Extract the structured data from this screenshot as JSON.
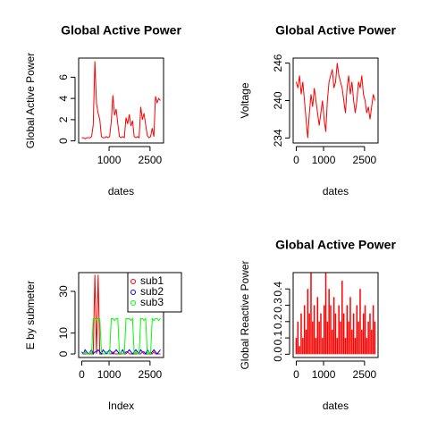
{
  "chart_data": [
    {
      "type": "line",
      "title": "Global Active Power",
      "ylabel": "Global Active Power",
      "xlabel": "dates",
      "color": "#ff0000",
      "x": [
        0,
        60,
        120,
        180,
        240,
        300,
        360,
        420,
        480,
        540,
        600,
        660,
        720,
        780,
        840,
        900,
        960,
        1020,
        1080,
        1140,
        1200,
        1260,
        1320,
        1380,
        1440,
        1500,
        1560,
        1620,
        1680,
        1740,
        1800,
        1860,
        1920,
        1980,
        2040,
        2100,
        2160,
        2220,
        2280,
        2340,
        2400,
        2460,
        2520,
        2580,
        2640,
        2700,
        2760,
        2820,
        2880
      ],
      "values": [
        0.3,
        0.3,
        0.2,
        0.3,
        0.3,
        0.3,
        0.4,
        1.5,
        7.5,
        3.5,
        2.6,
        2.0,
        0.4,
        0.3,
        0.3,
        0.4,
        0.3,
        0.4,
        1.8,
        4.3,
        2.4,
        3.0,
        1.6,
        0.4,
        0.3,
        0.4,
        0.3,
        2.2,
        1.6,
        2.5,
        1.4,
        1.9,
        0.4,
        0.3,
        0.4,
        0.3,
        3.2,
        2.0,
        2.6,
        1.5,
        0.5,
        0.3,
        0.4,
        1.2,
        0.4,
        4.2,
        3.6,
        4.0,
        3.8
      ],
      "xlim": [
        -114,
        2995
      ],
      "xticks": [
        1000,
        2500
      ],
      "ylim": [
        -0.2,
        7.8
      ],
      "yticks": [
        0,
        2,
        4,
        6
      ]
    },
    {
      "type": "line",
      "title": "Global Active Power",
      "ylabel": "Voltage",
      "xlabel": "dates",
      "color": "#ff0000",
      "x": [
        0,
        60,
        120,
        180,
        240,
        300,
        360,
        420,
        480,
        540,
        600,
        660,
        720,
        780,
        840,
        900,
        960,
        1020,
        1080,
        1140,
        1200,
        1260,
        1320,
        1380,
        1440,
        1500,
        1560,
        1620,
        1680,
        1740,
        1800,
        1860,
        1920,
        1980,
        2040,
        2100,
        2160,
        2220,
        2280,
        2340,
        2400,
        2460,
        2520,
        2580,
        2640,
        2700,
        2760,
        2820,
        2880
      ],
      "values": [
        243,
        242,
        244,
        241,
        243,
        240,
        237,
        234,
        238,
        241,
        239,
        242,
        240,
        238,
        236,
        238,
        240,
        237,
        235,
        240,
        243,
        244,
        245,
        242,
        243,
        246,
        244,
        243,
        242,
        240,
        238,
        242,
        244,
        241,
        243,
        240,
        238,
        240,
        243,
        242,
        244,
        241,
        240,
        238,
        239,
        237,
        239,
        241,
        240
      ],
      "xlim": [
        -114,
        2995
      ],
      "xticks": [
        0,
        1000,
        2500
      ],
      "ylim": [
        233.2,
        246.8
      ],
      "yticks": [
        234,
        240,
        246
      ]
    },
    {
      "type": "line",
      "ylabel": "E by submeter",
      "xlabel": "Index",
      "legend": "topright",
      "x": [
        0,
        60,
        120,
        180,
        240,
        300,
        360,
        420,
        480,
        540,
        600,
        660,
        720,
        780,
        840,
        900,
        960,
        1020,
        1080,
        1140,
        1200,
        1260,
        1320,
        1380,
        1440,
        1500,
        1560,
        1620,
        1680,
        1740,
        1800,
        1860,
        1920,
        1980,
        2040,
        2100,
        2160,
        2220,
        2280,
        2340,
        2400,
        2460,
        2520,
        2580,
        2640,
        2700,
        2760,
        2820,
        2880
      ],
      "series": [
        {
          "name": "sub1",
          "color": "#ff0000",
          "values": [
            0,
            0,
            0,
            0,
            0,
            0,
            0,
            0,
            38,
            0,
            38,
            0,
            0,
            0,
            0,
            1,
            0,
            0,
            0,
            1,
            0,
            0,
            0,
            0,
            0,
            0,
            0,
            0,
            1,
            0,
            0,
            0,
            0,
            0,
            0,
            0,
            0,
            1,
            0,
            0,
            0,
            0,
            0,
            0,
            1,
            0,
            0,
            0,
            0
          ]
        },
        {
          "name": "sub2",
          "color": "#0000ff",
          "values": [
            1,
            0,
            2,
            1,
            0,
            1,
            2,
            0,
            1,
            1,
            2,
            1,
            0,
            2,
            1,
            0,
            1,
            2,
            1,
            0,
            1,
            2,
            1,
            0,
            1,
            2,
            0,
            1,
            1,
            2,
            1,
            0,
            1,
            2,
            1,
            0,
            2,
            1,
            1,
            0,
            2,
            1,
            0,
            1,
            2,
            1,
            0,
            1,
            2
          ]
        },
        {
          "name": "sub3",
          "color": "#00ff00",
          "values": [
            0,
            0,
            1,
            0,
            0,
            1,
            0,
            17,
            17,
            16,
            17,
            17,
            1,
            0,
            0,
            1,
            0,
            0,
            17,
            17,
            16,
            17,
            17,
            0,
            1,
            0,
            0,
            17,
            17,
            17,
            16,
            17,
            0,
            1,
            0,
            0,
            17,
            17,
            16,
            17,
            0,
            1,
            0,
            17,
            16,
            17,
            17,
            16,
            17
          ]
        }
      ],
      "xlim": [
        -114,
        2995
      ],
      "xticks": [
        0,
        1000,
        2500
      ],
      "ylim": [
        -1.7,
        39
      ],
      "yticks": [
        0,
        10,
        30
      ]
    },
    {
      "type": "spike",
      "title": "Global Active Power",
      "ylabel": "Global Reactive Power",
      "xlabel": "dates",
      "color": "#ff0000",
      "x": [
        0,
        60,
        120,
        180,
        240,
        300,
        360,
        420,
        480,
        540,
        600,
        660,
        720,
        780,
        840,
        900,
        960,
        1020,
        1080,
        1140,
        1200,
        1260,
        1320,
        1380,
        1440,
        1500,
        1560,
        1620,
        1680,
        1740,
        1800,
        1860,
        1920,
        1980,
        2040,
        2100,
        2160,
        2220,
        2280,
        2340,
        2400,
        2460,
        2520,
        2580,
        2640,
        2700,
        2760,
        2820,
        2880
      ],
      "values": [
        0.1,
        0.2,
        0.05,
        0.25,
        0.1,
        0.3,
        0.15,
        0.4,
        0.25,
        0.5,
        0.2,
        0.3,
        0.1,
        0.35,
        0.2,
        0.25,
        0.1,
        0.3,
        0.5,
        0.2,
        0.4,
        0.3,
        0.15,
        0.35,
        0.25,
        0.1,
        0.3,
        0.2,
        0.45,
        0.25,
        0.1,
        0.3,
        0.2,
        0.35,
        0.15,
        0.25,
        0.1,
        0.3,
        0.2,
        0.4,
        0.15,
        0.25,
        0.3,
        0.1,
        0.2,
        0.25,
        0.15,
        0.3,
        0.2
      ],
      "xlim": [
        -114,
        2995
      ],
      "xticks": [
        0,
        1000,
        2500
      ],
      "ylim": [
        -0.02,
        0.5
      ],
      "yticks": [
        {
          "value": 0,
          "label": "0.0"
        },
        {
          "value": 0.1,
          "label": "0.1"
        },
        0.2,
        0.3,
        0.4
      ]
    }
  ]
}
